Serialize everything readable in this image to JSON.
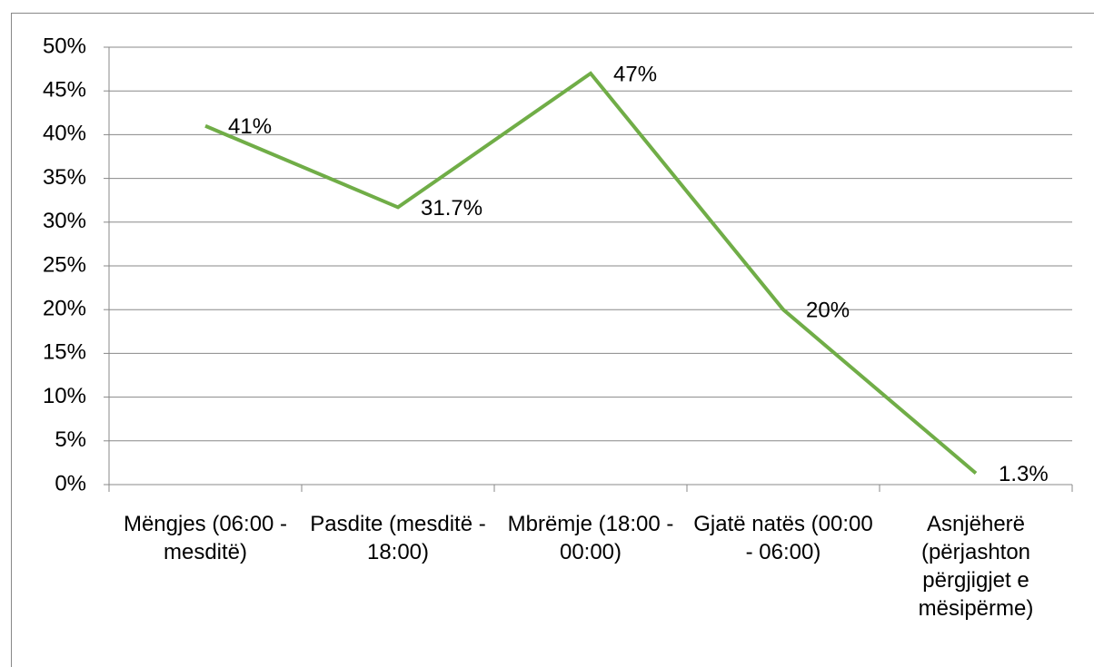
{
  "chart_data": {
    "type": "line",
    "categories": [
      "Mëngjes (06:00 - mesditë)",
      "Pasdite (mesditë - 18:00)",
      "Mbrëmje (18:00 - 00:00)",
      "Gjatë natës (00:00 - 06:00)",
      "Asnjëherë (përjashton përgjigjet e mësipërme)"
    ],
    "series": [
      {
        "color": "#70ad47",
        "values": [
          41,
          31.7,
          47,
          20,
          1.3
        ],
        "value_labels": [
          "41%",
          "31.7%",
          "47%",
          "20%",
          "1.3%"
        ]
      }
    ],
    "ylim": [
      0,
      50
    ],
    "yticks": [
      {
        "value": 0,
        "label": "0%"
      },
      {
        "value": 5,
        "label": "5%"
      },
      {
        "value": 10,
        "label": "10%"
      },
      {
        "value": 15,
        "label": "15%"
      },
      {
        "value": 20,
        "label": "20%"
      },
      {
        "value": 25,
        "label": "25%"
      },
      {
        "value": 30,
        "label": "30%"
      },
      {
        "value": 35,
        "label": "35%"
      },
      {
        "value": 40,
        "label": "40%"
      },
      {
        "value": 45,
        "label": "45%"
      },
      {
        "value": 50,
        "label": "50%"
      }
    ],
    "grid": true
  }
}
